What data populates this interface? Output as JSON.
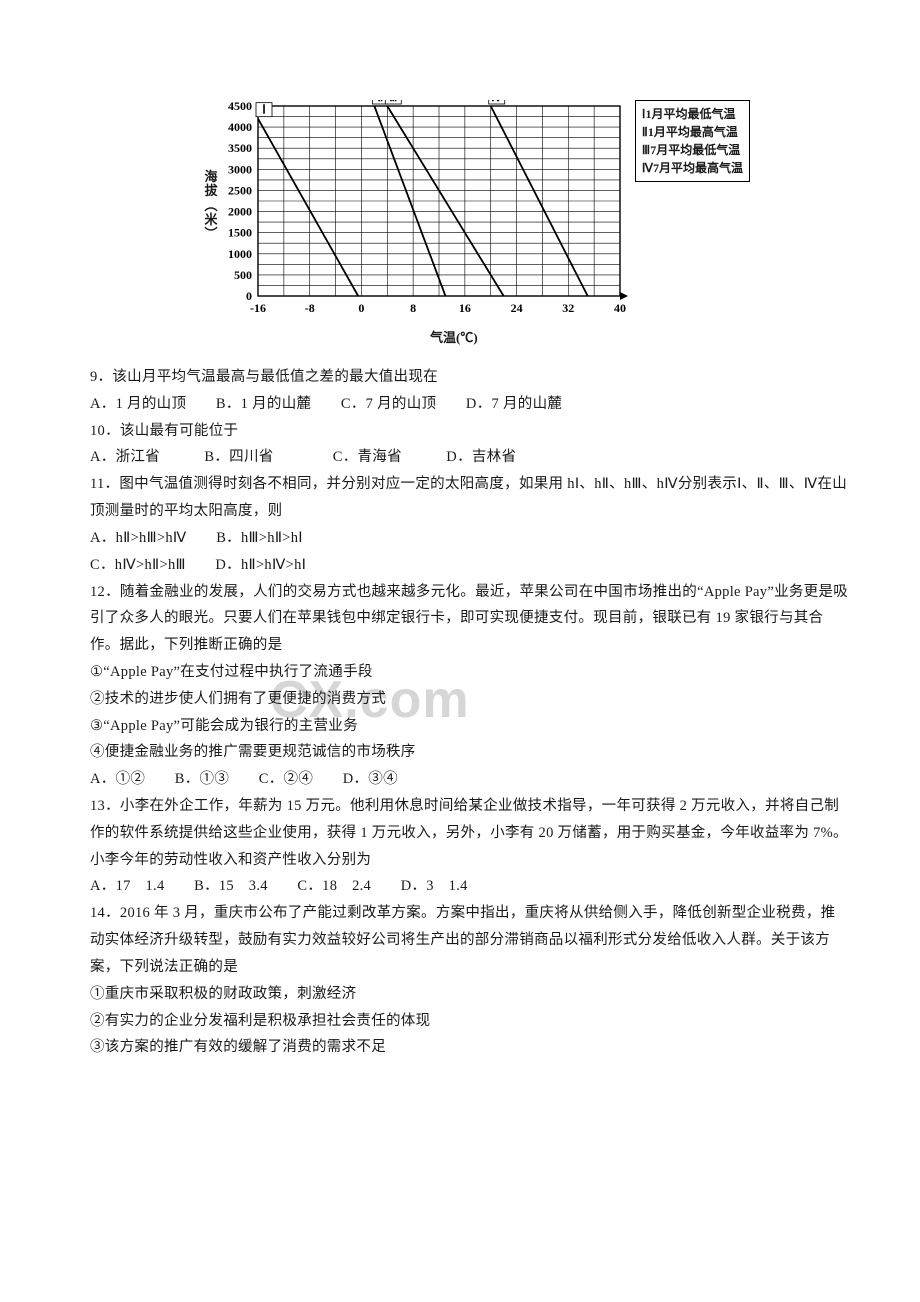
{
  "chart": {
    "type": "line",
    "ylabel_chars": [
      "海",
      "拔",
      "︵",
      "米",
      "︶"
    ],
    "xlabel": "气温(℃)",
    "legend": [
      "Ⅰ1月平均最低气温",
      "Ⅱ1月平均最高气温",
      "Ⅲ7月平均最低气温",
      "Ⅳ7月平均最高气温"
    ],
    "x_ticks": [
      "-16",
      "-8",
      "0",
      "8",
      "16",
      "24",
      "32",
      "40"
    ],
    "y_ticks": [
      "0",
      "500",
      "1000",
      "1500",
      "2000",
      "2500",
      "3000",
      "3500",
      "4000",
      "4500"
    ],
    "xlim": [
      -16,
      40
    ],
    "ylim": [
      0,
      4500
    ],
    "series": {
      "I": {
        "label": "Ⅰ",
        "x0": -16,
        "y0": 4200,
        "x1": -0.5,
        "y1": 0
      },
      "II": {
        "label": "Ⅱ",
        "x0": 2,
        "y0": 4500,
        "x1": 13,
        "y1": 0
      },
      "III": {
        "label": "Ⅲ",
        "x0": 4,
        "y0": 4500,
        "x1": 22,
        "y1": 0
      },
      "IV": {
        "label": "Ⅳ",
        "x0": 20,
        "y0": 4500,
        "x1": 35,
        "y1": 0
      }
    },
    "grid_step_x": 4,
    "grid_step_y": 250,
    "colors": {
      "axis": "#000000",
      "grid": "#000000",
      "line": "#000000",
      "bg": "#ffffff"
    },
    "line_width": 1.8,
    "grid_width": 0.6
  },
  "q9": {
    "stem": "9．该山月平均气温最高与最低值之差的最大值出现在",
    "opts": "A．1 月的山顶　　B．1 月的山麓　　C．7 月的山顶　　D．7 月的山麓"
  },
  "q10": {
    "stem": "10．该山最有可能位于",
    "opts": "A．浙江省　　　B．四川省　　　　C．青海省　　　D．吉林省"
  },
  "q11": {
    "stem": "11．图中气温值测得时刻各不相同，并分别对应一定的太阳高度，如果用 hⅠ、hⅡ、hⅢ、hⅣ分别表示Ⅰ、Ⅱ、Ⅲ、Ⅳ在山顶测量时的平均太阳高度，则",
    "a": "A．hⅡ>hⅢ>hⅣ　　B．hⅢ>hⅡ>hⅠ",
    "b": "C．hⅣ>hⅡ>hⅢ　　D．hⅡ>hⅣ>hⅠ"
  },
  "q12": {
    "stem": "12．随着金融业的发展，人们的交易方式也越来越多元化。最近，苹果公司在中国市场推出的“Apple Pay”业务更是吸引了众多人的眼光。只要人们在苹果钱包中绑定银行卡，即可实现便捷支付。现目前，银联已有 19 家银行与其合作。据此，下列推断正确的是",
    "s1": "①“Apple Pay”在支付过程中执行了流通手段",
    "s2": "②技术的进步使人们拥有了更便捷的消费方式",
    "s3": "③“Apple Pay”可能会成为银行的主营业务",
    "s4": "④便捷金融业务的推广需要更规范诚信的市场秩序",
    "opts": "A．①②　　B．①③　　C．②④　　D．③④"
  },
  "q13": {
    "stem": "13．小李在外企工作，年薪为 15 万元。他利用休息时间给某企业做技术指导，一年可获得 2 万元收入，并将自己制作的软件系统提供给这些企业使用，获得 1 万元收入，另外，小李有 20 万储蓄，用于购买基金，今年收益率为 7%。小李今年的劳动性收入和资产性收入分别为",
    "opts": "A．17　1.4　　B．15　3.4　　C．18　2.4　　D．3　1.4"
  },
  "q14": {
    "stem": "14．2016 年 3 月，重庆市公布了产能过剩改革方案。方案中指出，重庆将从供给侧入手，降低创新型企业税费，推动实体经济升级转型，鼓励有实力效益较好公司将生产出的部分滞销商品以福利形式分发给低收入人群。关于该方案，下列说法正确的是",
    "s1": "①重庆市采取积极的财政政策，刺激经济",
    "s2": "②有实力的企业分发福利是积极承担社会责任的体现",
    "s3": "③该方案的推广有效的缓解了消费的需求不足"
  }
}
